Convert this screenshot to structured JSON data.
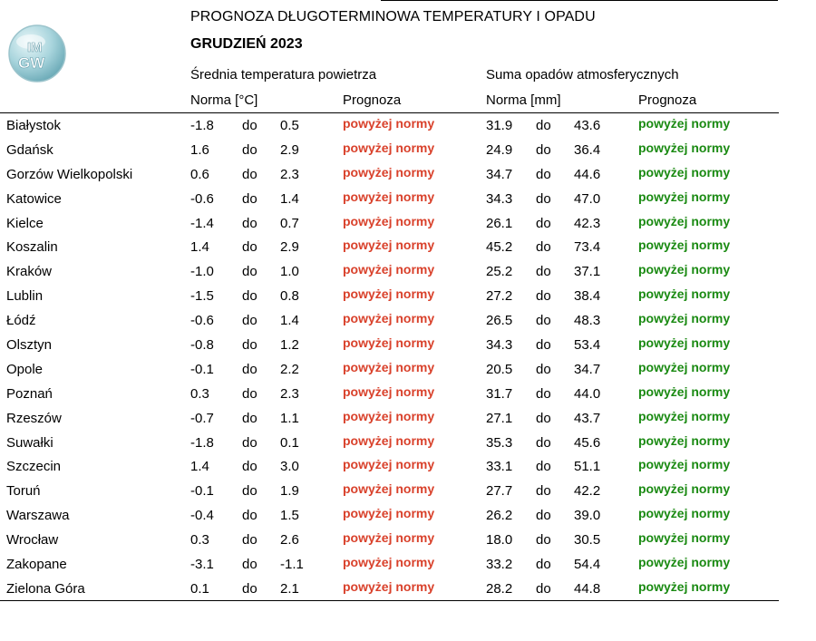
{
  "header": {
    "title": "PROGNOZA DŁUGOTERMINOWA TEMPERATURY I OPADU",
    "subtitle": "GRUDZIEŃ 2023",
    "logo_text_top": "IM",
    "logo_text_bottom": "GW"
  },
  "colors": {
    "above_temp": "#d9412b",
    "above_precip": "#1a8a12"
  },
  "columns": {
    "temp_group": "Średnia temperatura powietrza",
    "precip_group": "Suma opadów atmosferycznych",
    "temp_norm": "Norma [°C]",
    "temp_forecast": "Prognoza",
    "precip_norm": "Norma [mm]",
    "precip_forecast": "Prognoza"
  },
  "rows": [
    {
      "city": "Białystok",
      "tmin": "-1.8",
      "tdo": "do",
      "tmax": "0.5",
      "tfc": "powyżej normy",
      "pmin": "31.9",
      "pdo": "do",
      "pmax": "43.6",
      "pfc": "powyżej normy"
    },
    {
      "city": "Gdańsk",
      "tmin": "1.6",
      "tdo": "do",
      "tmax": "2.9",
      "tfc": "powyżej normy",
      "pmin": "24.9",
      "pdo": "do",
      "pmax": "36.4",
      "pfc": "powyżej normy"
    },
    {
      "city": "Gorzów Wielkopolski",
      "tmin": "0.6",
      "tdo": "do",
      "tmax": "2.3",
      "tfc": "powyżej normy",
      "pmin": "34.7",
      "pdo": "do",
      "pmax": "44.6",
      "pfc": "powyżej normy"
    },
    {
      "city": "Katowice",
      "tmin": "-0.6",
      "tdo": "do",
      "tmax": "1.4",
      "tfc": "powyżej normy",
      "pmin": "34.3",
      "pdo": "do",
      "pmax": "47.0",
      "pfc": "powyżej normy"
    },
    {
      "city": "Kielce",
      "tmin": "-1.4",
      "tdo": "do",
      "tmax": "0.7",
      "tfc": "powyżej normy",
      "pmin": "26.1",
      "pdo": "do",
      "pmax": "42.3",
      "pfc": "powyżej normy"
    },
    {
      "city": "Koszalin",
      "tmin": "1.4",
      "tdo": "do",
      "tmax": "2.9",
      "tfc": "powyżej normy",
      "pmin": "45.2",
      "pdo": "do",
      "pmax": "73.4",
      "pfc": "powyżej normy"
    },
    {
      "city": "Kraków",
      "tmin": "-1.0",
      "tdo": "do",
      "tmax": "1.0",
      "tfc": "powyżej normy",
      "pmin": "25.2",
      "pdo": "do",
      "pmax": "37.1",
      "pfc": "powyżej normy"
    },
    {
      "city": "Lublin",
      "tmin": "-1.5",
      "tdo": "do",
      "tmax": "0.8",
      "tfc": "powyżej normy",
      "pmin": "27.2",
      "pdo": "do",
      "pmax": "38.4",
      "pfc": "powyżej normy"
    },
    {
      "city": "Łódź",
      "tmin": "-0.6",
      "tdo": "do",
      "tmax": "1.4",
      "tfc": "powyżej normy",
      "pmin": "26.5",
      "pdo": "do",
      "pmax": "48.3",
      "pfc": "powyżej normy"
    },
    {
      "city": "Olsztyn",
      "tmin": "-0.8",
      "tdo": "do",
      "tmax": "1.2",
      "tfc": "powyżej normy",
      "pmin": "34.3",
      "pdo": "do",
      "pmax": "53.4",
      "pfc": "powyżej normy"
    },
    {
      "city": "Opole",
      "tmin": "-0.1",
      "tdo": "do",
      "tmax": "2.2",
      "tfc": "powyżej normy",
      "pmin": "20.5",
      "pdo": "do",
      "pmax": "34.7",
      "pfc": "powyżej normy"
    },
    {
      "city": "Poznań",
      "tmin": "0.3",
      "tdo": "do",
      "tmax": "2.3",
      "tfc": "powyżej normy",
      "pmin": "31.7",
      "pdo": "do",
      "pmax": "44.0",
      "pfc": "powyżej normy"
    },
    {
      "city": "Rzeszów",
      "tmin": "-0.7",
      "tdo": "do",
      "tmax": "1.1",
      "tfc": "powyżej normy",
      "pmin": "27.1",
      "pdo": "do",
      "pmax": "43.7",
      "pfc": "powyżej normy"
    },
    {
      "city": "Suwałki",
      "tmin": "-1.8",
      "tdo": "do",
      "tmax": "0.1",
      "tfc": "powyżej normy",
      "pmin": "35.3",
      "pdo": "do",
      "pmax": "45.6",
      "pfc": "powyżej normy"
    },
    {
      "city": "Szczecin",
      "tmin": "1.4",
      "tdo": "do",
      "tmax": "3.0",
      "tfc": "powyżej normy",
      "pmin": "33.1",
      "pdo": "do",
      "pmax": "51.1",
      "pfc": "powyżej normy"
    },
    {
      "city": "Toruń",
      "tmin": "-0.1",
      "tdo": "do",
      "tmax": "1.9",
      "tfc": "powyżej normy",
      "pmin": "27.7",
      "pdo": "do",
      "pmax": "42.2",
      "pfc": "powyżej normy"
    },
    {
      "city": "Warszawa",
      "tmin": "-0.4",
      "tdo": "do",
      "tmax": "1.5",
      "tfc": "powyżej normy",
      "pmin": "26.2",
      "pdo": "do",
      "pmax": "39.0",
      "pfc": "powyżej normy"
    },
    {
      "city": "Wrocław",
      "tmin": "0.3",
      "tdo": "do",
      "tmax": "2.6",
      "tfc": "powyżej normy",
      "pmin": "18.0",
      "pdo": "do",
      "pmax": "30.5",
      "pfc": "powyżej normy"
    },
    {
      "city": "Zakopane",
      "tmin": "-3.1",
      "tdo": "do",
      "tmax": "-1.1",
      "tfc": "powyżej normy",
      "pmin": "33.2",
      "pdo": "do",
      "pmax": "54.4",
      "pfc": "powyżej normy"
    },
    {
      "city": "Zielona Góra",
      "tmin": "0.1",
      "tdo": "do",
      "tmax": "2.1",
      "tfc": "powyżej normy",
      "pmin": "28.2",
      "pdo": "do",
      "pmax": "44.8",
      "pfc": "powyżej normy"
    }
  ]
}
